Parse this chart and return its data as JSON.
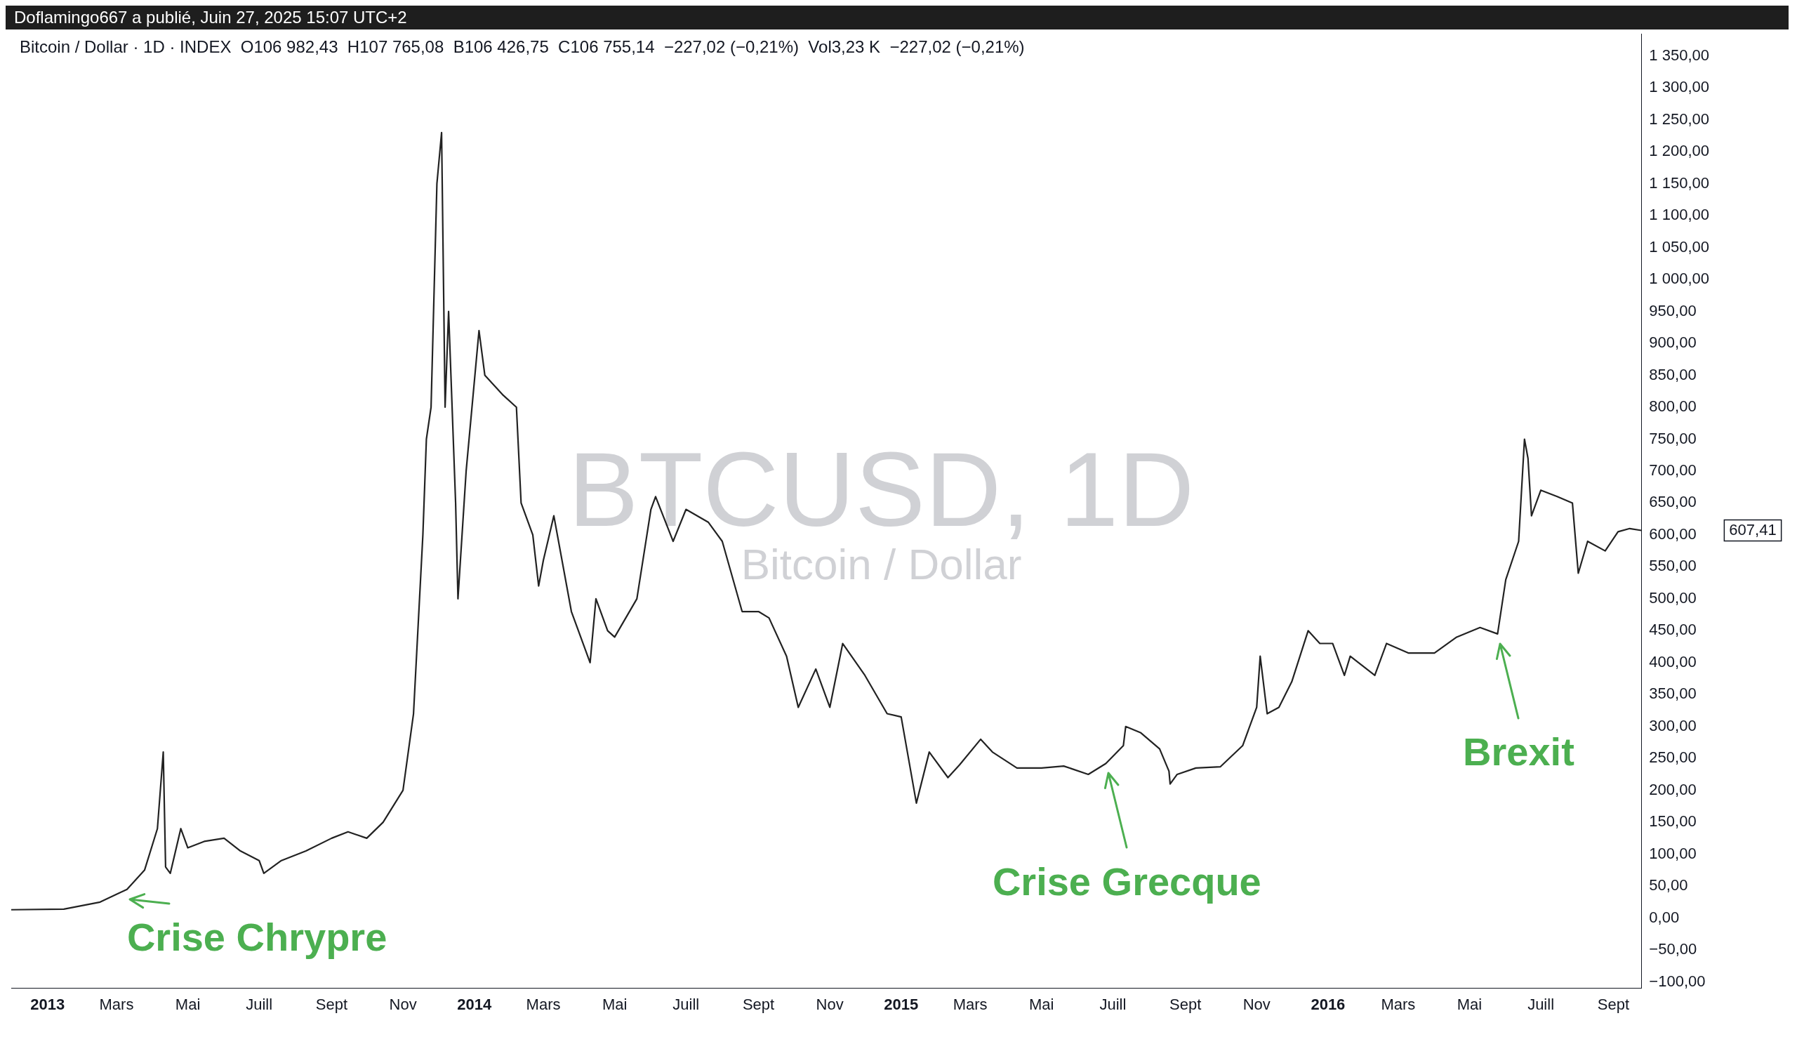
{
  "chart_data": {
    "type": "line",
    "title": "BTCUSD, 1D",
    "subtitle": "Bitcoin / Dollar",
    "annotations": [
      "Doflamingo667 a publié, Juin 27, 2025 15:07 UTC+2",
      "Bitcoin / Dollar · 1D · INDEX  O106 982,43  H107 765,08  B106 426,75  C106 755,14  −227,02 (−0,21%)  Vol3,23 K  −227,02 (−0,21%)",
      {
        "text": "Crise Chrypre",
        "x": "2013-03-10",
        "y": 45
      },
      {
        "text": "Crise Grecque",
        "x": "2015-06-25",
        "y": 242
      },
      {
        "text": "Brexit",
        "x": "2016-05-25",
        "y": 445
      },
      "607,41"
    ],
    "x": [
      "2012-12-01",
      "2013-01-15",
      "2013-02-15",
      "2013-03-10",
      "2013-03-25",
      "2013-04-05",
      "2013-04-10",
      "2013-04-12",
      "2013-04-16",
      "2013-04-25",
      "2013-05-01",
      "2013-05-15",
      "2013-06-01",
      "2013-06-15",
      "2013-07-01",
      "2013-07-05",
      "2013-07-20",
      "2013-08-10",
      "2013-09-01",
      "2013-09-15",
      "2013-10-01",
      "2013-10-15",
      "2013-11-01",
      "2013-11-10",
      "2013-11-18",
      "2013-11-21",
      "2013-11-25",
      "2013-11-30",
      "2013-12-04",
      "2013-12-07",
      "2013-12-10",
      "2013-12-16",
      "2013-12-18",
      "2013-12-25",
      "2014-01-05",
      "2014-01-10",
      "2014-01-25",
      "2014-02-06",
      "2014-02-10",
      "2014-02-20",
      "2014-02-25",
      "2014-03-01",
      "2014-03-10",
      "2014-03-25",
      "2014-04-10",
      "2014-04-15",
      "2014-04-25",
      "2014-05-01",
      "2014-05-20",
      "2014-06-01",
      "2014-06-05",
      "2014-06-20",
      "2014-07-01",
      "2014-07-20",
      "2014-08-01",
      "2014-08-18",
      "2014-09-01",
      "2014-09-10",
      "2014-09-25",
      "2014-10-05",
      "2014-10-20",
      "2014-11-01",
      "2014-11-12",
      "2014-12-01",
      "2014-12-20",
      "2015-01-01",
      "2015-01-14",
      "2015-01-25",
      "2015-02-10",
      "2015-02-20",
      "2015-03-10",
      "2015-03-20",
      "2015-04-10",
      "2015-05-01",
      "2015-05-20",
      "2015-06-10",
      "2015-06-25",
      "2015-07-10",
      "2015-07-12",
      "2015-07-25",
      "2015-08-10",
      "2015-08-18",
      "2015-08-19",
      "2015-08-25",
      "2015-09-10",
      "2015-10-01",
      "2015-10-20",
      "2015-11-01",
      "2015-11-04",
      "2015-11-10",
      "2015-11-20",
      "2015-12-01",
      "2015-12-15",
      "2015-12-25",
      "2016-01-05",
      "2016-01-15",
      "2016-01-20",
      "2016-02-10",
      "2016-02-20",
      "2016-03-10",
      "2016-04-01",
      "2016-04-20",
      "2016-05-10",
      "2016-05-25",
      "2016-06-01",
      "2016-06-12",
      "2016-06-17",
      "2016-06-20",
      "2016-06-23",
      "2016-07-01",
      "2016-07-15",
      "2016-07-28",
      "2016-08-02",
      "2016-08-10",
      "2016-08-25",
      "2016-09-05",
      "2016-09-15",
      "2016-09-25"
    ],
    "series": [
      {
        "color": "#222222",
        "values": [
          13,
          14,
          25,
          45,
          75,
          140,
          260,
          80,
          70,
          140,
          110,
          120,
          125,
          105,
          90,
          70,
          90,
          105,
          125,
          135,
          125,
          150,
          200,
          320,
          600,
          750,
          800,
          1150,
          1230,
          800,
          950,
          650,
          500,
          700,
          920,
          850,
          820,
          800,
          650,
          600,
          520,
          560,
          630,
          480,
          400,
          500,
          450,
          440,
          500,
          640,
          660,
          590,
          640,
          620,
          590,
          480,
          480,
          470,
          410,
          330,
          390,
          330,
          430,
          380,
          320,
          315,
          180,
          260,
          220,
          240,
          280,
          260,
          235,
          235,
          238,
          225,
          242,
          270,
          300,
          290,
          265,
          230,
          210,
          225,
          235,
          237,
          270,
          330,
          410,
          320,
          330,
          370,
          450,
          430,
          430,
          380,
          410,
          380,
          430,
          415,
          415,
          440,
          455,
          445,
          530,
          590,
          750,
          720,
          630,
          670,
          660,
          650,
          540,
          590,
          575,
          605,
          610,
          607
        ]
      }
    ],
    "xlim": [
      "2012-12-01",
      "2016-09-25"
    ],
    "xticks": [
      {
        "value": "2013-01-01",
        "label": "2013"
      },
      {
        "value": "2013-03-01",
        "label": "Mars"
      },
      {
        "value": "2013-05-01",
        "label": "Mai"
      },
      {
        "value": "2013-07-01",
        "label": "Juill"
      },
      {
        "value": "2013-09-01",
        "label": "Sept"
      },
      {
        "value": "2013-11-01",
        "label": "Nov"
      },
      {
        "value": "2014-01-01",
        "label": "2014"
      },
      {
        "value": "2014-03-01",
        "label": "Mars"
      },
      {
        "value": "2014-05-01",
        "label": "Mai"
      },
      {
        "value": "2014-07-01",
        "label": "Juill"
      },
      {
        "value": "2014-09-01",
        "label": "Sept"
      },
      {
        "value": "2014-11-01",
        "label": "Nov"
      },
      {
        "value": "2015-01-01",
        "label": "2015"
      },
      {
        "value": "2015-03-01",
        "label": "Mars"
      },
      {
        "value": "2015-05-01",
        "label": "Mai"
      },
      {
        "value": "2015-07-01",
        "label": "Juill"
      },
      {
        "value": "2015-09-01",
        "label": "Sept"
      },
      {
        "value": "2015-11-01",
        "label": "Nov"
      },
      {
        "value": "2016-01-01",
        "label": "2016"
      },
      {
        "value": "2016-03-01",
        "label": "Mars"
      },
      {
        "value": "2016-05-01",
        "label": "Mai"
      },
      {
        "value": "2016-07-01",
        "label": "Juill"
      },
      {
        "value": "2016-09-01",
        "label": "Sept"
      }
    ],
    "ylim": [
      -110,
      1385
    ],
    "yticks": [
      {
        "value": -100,
        "label": "−100,00"
      },
      {
        "value": -50,
        "label": "−50,00"
      },
      {
        "value": 0,
        "label": "0,00"
      },
      {
        "value": 50,
        "label": "50,00"
      },
      {
        "value": 100,
        "label": "100,00"
      },
      {
        "value": 150,
        "label": "150,00"
      },
      {
        "value": 200,
        "label": "200,00"
      },
      {
        "value": 250,
        "label": "250,00"
      },
      {
        "value": 300,
        "label": "300,00"
      },
      {
        "value": 350,
        "label": "350,00"
      },
      {
        "value": 400,
        "label": "400,00"
      },
      {
        "value": 450,
        "label": "450,00"
      },
      {
        "value": 500,
        "label": "500,00"
      },
      {
        "value": 550,
        "label": "550,00"
      },
      {
        "value": 600,
        "label": "600,00"
      },
      {
        "value": 650,
        "label": "650,00"
      },
      {
        "value": 700,
        "label": "700,00"
      },
      {
        "value": 750,
        "label": "750,00"
      },
      {
        "value": 800,
        "label": "800,00"
      },
      {
        "value": 850,
        "label": "850,00"
      },
      {
        "value": 900,
        "label": "900,00"
      },
      {
        "value": 950,
        "label": "950,00"
      },
      {
        "value": 1000,
        "label": "1 000,00"
      },
      {
        "value": 1050,
        "label": "1 050,00"
      },
      {
        "value": 1100,
        "label": "1 100,00"
      },
      {
        "value": 1150,
        "label": "1 150,00"
      },
      {
        "value": 1200,
        "label": "1 200,00"
      },
      {
        "value": 1250,
        "label": "1 250,00"
      },
      {
        "value": 1300,
        "label": "1 300,00"
      },
      {
        "value": 1350,
        "label": "1 350,00"
      }
    ],
    "grid": false,
    "legend": false,
    "marker": "none",
    "line_style": "solid"
  }
}
